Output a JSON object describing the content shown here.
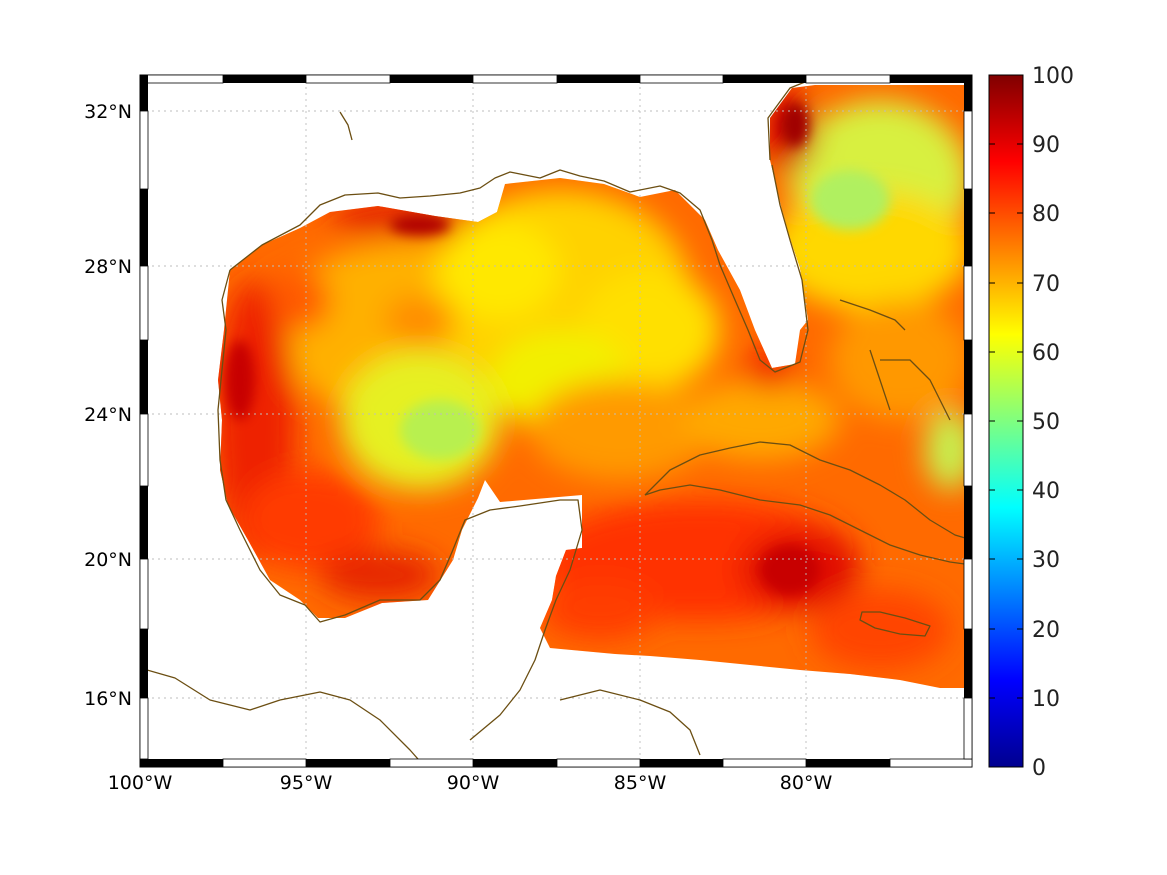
{
  "map": {
    "lon_labels": [
      "100°W",
      "95°W",
      "90°W",
      "85°W",
      "80°W"
    ],
    "lat_labels": [
      "32°N",
      "28°N",
      "24°N",
      "20°N",
      "16°N"
    ],
    "colormap": "jet",
    "land_color": "#ffffff",
    "coastline_color": "#6b4e12",
    "grid": true
  },
  "colorbar": {
    "min": 0,
    "max": 100,
    "tick_labels": [
      "100",
      "90",
      "80",
      "70",
      "60",
      "50",
      "40",
      "30",
      "20",
      "10",
      "0"
    ]
  }
}
